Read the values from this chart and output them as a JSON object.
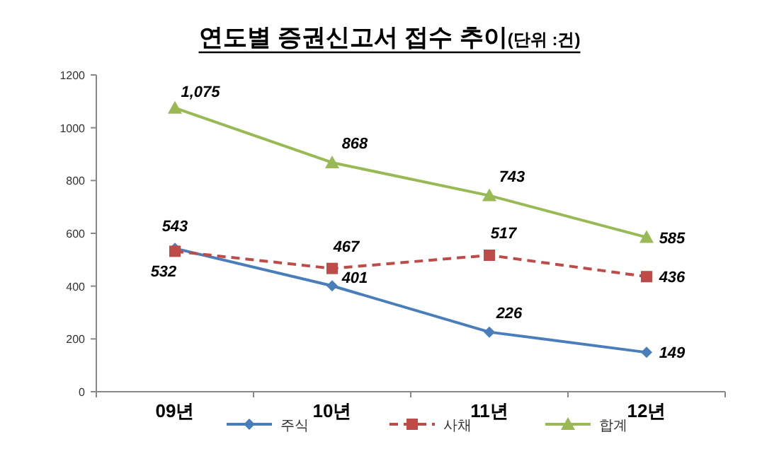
{
  "chart_data": {
    "type": "line",
    "title": "연도별 증권신고서 접수 추이",
    "subtitle": "(단위 :건)",
    "categories": [
      "09년",
      "10년",
      "11년",
      "12년"
    ],
    "series": [
      {
        "name": "주식",
        "color": "#4a7ebb",
        "marker": "diamond",
        "line_style": "solid",
        "values": [
          543,
          401,
          226,
          149
        ],
        "value_labels": [
          "543",
          "401",
          "226",
          "149"
        ]
      },
      {
        "name": "사채",
        "color": "#be4b48",
        "marker": "square",
        "line_style": "dashed",
        "values": [
          532,
          467,
          517,
          436
        ],
        "value_labels": [
          "532",
          "467",
          "517",
          "436"
        ]
      },
      {
        "name": "합계",
        "color": "#98b954",
        "marker": "triangle",
        "line_style": "solid",
        "values": [
          1075,
          868,
          743,
          585
        ],
        "value_labels": [
          "1,075",
          "868",
          "743",
          "585"
        ]
      }
    ],
    "ylim": [
      0,
      1200
    ],
    "yticks": [
      0,
      200,
      400,
      600,
      800,
      1000,
      1200
    ],
    "grid": false,
    "legend": "bottom"
  }
}
